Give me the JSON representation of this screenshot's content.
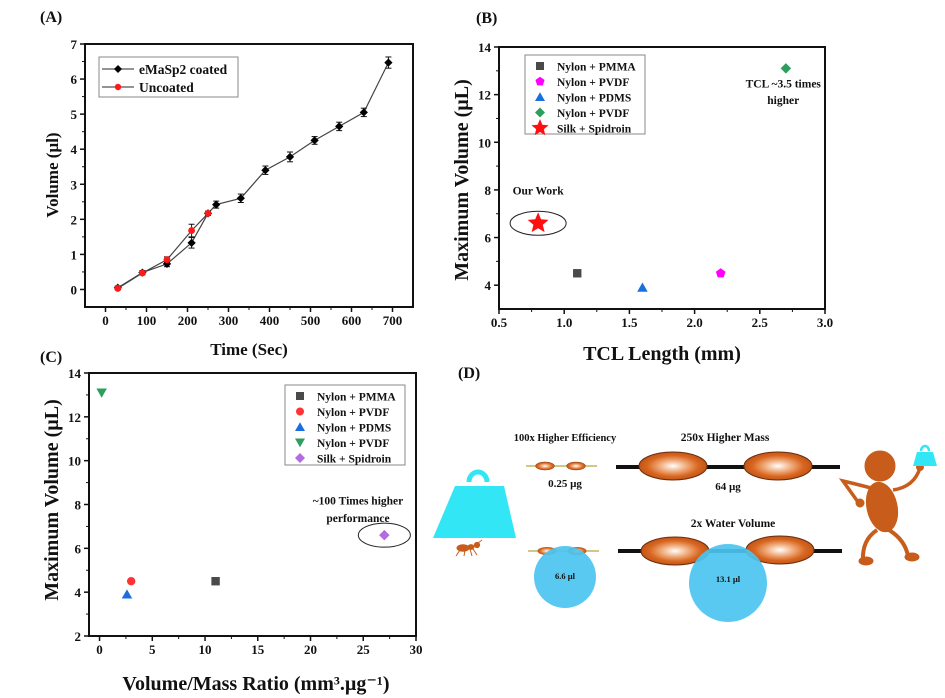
{
  "figure": {
    "panel_labels": [
      "(A)",
      "(B)",
      "(C)",
      "(D)"
    ]
  },
  "chart_data": [
    {
      "panel": "(A)",
      "type": "line",
      "title": "",
      "xlabel": "Time (Sec)",
      "ylabel": "Volume (µl)",
      "xlim": [
        -50,
        750
      ],
      "ylim": [
        -0.5,
        7
      ],
      "xticks": [
        0,
        100,
        200,
        300,
        400,
        500,
        600,
        700
      ],
      "yticks": [
        0,
        1,
        2,
        3,
        4,
        5,
        6,
        7
      ],
      "grid": false,
      "legend_position": "top-left",
      "series": [
        {
          "name": "eMaSp2 coated",
          "color": "#000000",
          "marker": "diamond",
          "x": [
            30,
            90,
            150,
            210,
            250,
            270,
            330,
            390,
            450,
            510,
            570,
            630,
            690
          ],
          "y": [
            0.05,
            0.48,
            0.73,
            1.33,
            2.17,
            2.42,
            2.6,
            3.4,
            3.78,
            4.25,
            4.65,
            5.05,
            6.47
          ],
          "err": [
            0.05,
            0.06,
            0.08,
            0.15,
            0.06,
            0.1,
            0.12,
            0.12,
            0.14,
            0.11,
            0.12,
            0.12,
            0.16
          ]
        },
        {
          "name": "Uncoated",
          "color": "#ff1a1a",
          "marker": "circle",
          "x": [
            30,
            90,
            150,
            210,
            250
          ],
          "y": [
            0.03,
            0.47,
            0.85,
            1.68,
            2.17
          ],
          "err": [
            0.04,
            0.05,
            0.08,
            0.18,
            0.06
          ]
        }
      ]
    },
    {
      "panel": "(B)",
      "type": "scatter",
      "xlabel": "TCL Length (mm)",
      "ylabel": "Maximum Volume  (µL)",
      "xlim": [
        0.5,
        3.0
      ],
      "ylim": [
        3,
        14
      ],
      "xticks": [
        0.5,
        1.0,
        1.5,
        2.0,
        2.5,
        3.0
      ],
      "xtick_labels": [
        "0.5",
        "1.0",
        "1.5",
        "2.0",
        "2.5",
        "3.0"
      ],
      "yticks": [
        4,
        6,
        8,
        10,
        12,
        14
      ],
      "grid": false,
      "legend_position": "top-left",
      "series": [
        {
          "name": "Nylon + PMMA",
          "marker": "square",
          "color": "#4a4a4a",
          "x": [
            1.1
          ],
          "y": [
            4.5
          ]
        },
        {
          "name": "Nylon + PVDF",
          "marker": "pentagon",
          "color": "#ff00ff",
          "x": [
            2.2
          ],
          "y": [
            4.5
          ]
        },
        {
          "name": "Nylon + PDMS",
          "marker": "triangle-up",
          "color": "#1a6fe0",
          "x": [
            1.6
          ],
          "y": [
            3.9
          ]
        },
        {
          "name": "Nylon + PVDF",
          "marker": "diamond",
          "color": "#2e9e5e",
          "x": [
            2.7
          ],
          "y": [
            13.1
          ]
        },
        {
          "name": "Silk + Spidroin",
          "marker": "star",
          "color": "#ff1010",
          "x": [
            0.8
          ],
          "y": [
            6.6
          ]
        }
      ],
      "annotations": [
        {
          "text": "Our Work",
          "x": 0.8,
          "y": 7.8
        },
        {
          "text": "TCL  ~3.5 times",
          "x": 2.68,
          "y": 12.3
        },
        {
          "text": "higher",
          "x": 2.68,
          "y": 11.6
        }
      ],
      "highlight_ellipse": {
        "x": 0.8,
        "y": 6.6
      }
    },
    {
      "panel": "(C)",
      "type": "scatter",
      "xlabel": "Volume/Mass Ratio (mm³.µg⁻¹)",
      "ylabel": "Maximum Volume  (µL)",
      "xlim": [
        -1,
        30
      ],
      "ylim": [
        2,
        14
      ],
      "xticks": [
        0,
        5,
        10,
        15,
        20,
        25,
        30
      ],
      "yticks": [
        2,
        4,
        6,
        8,
        10,
        12,
        14
      ],
      "grid": false,
      "legend_position": "top-right",
      "series": [
        {
          "name": "Nylon + PMMA",
          "marker": "square",
          "color": "#4a4a4a",
          "x": [
            11
          ],
          "y": [
            4.5
          ]
        },
        {
          "name": "Nylon + PVDF",
          "marker": "circle",
          "color": "#ff3333",
          "x": [
            3
          ],
          "y": [
            4.5
          ]
        },
        {
          "name": "Nylon + PDMS",
          "marker": "triangle-up",
          "color": "#1a6fe0",
          "x": [
            2.6
          ],
          "y": [
            3.9
          ]
        },
        {
          "name": "Nylon + PVDF",
          "marker": "triangle-down",
          "color": "#2e9e5e",
          "x": [
            0.2
          ],
          "y": [
            13.1
          ]
        },
        {
          "name": "Silk + Spidroin",
          "marker": "diamond",
          "color": "#b36be0",
          "x": [
            27
          ],
          "y": [
            6.6
          ]
        }
      ],
      "annotations": [
        {
          "text": "~100 Times  higher",
          "x": 24.5,
          "y": 8.0
        },
        {
          "text": "performance",
          "x": 24.5,
          "y": 7.2
        }
      ],
      "highlight_ellipse": {
        "x": 27,
        "y": 6.6
      }
    }
  ],
  "diagram": {
    "panel": "(D)",
    "efficiency_label": "100x Higher Efficiency",
    "mass_label": "250x Higher Mass",
    "small_mass": "0.25 µg",
    "large_mass": "64 µg",
    "water_label": "2x Water Volume",
    "small_volume": "6.6 µl",
    "large_volume": "13.1 µl",
    "colors": {
      "knot": "#d2601a",
      "water": "#4cc4f0",
      "weight": "#33e6f5",
      "figure": "#c85c1a"
    }
  }
}
